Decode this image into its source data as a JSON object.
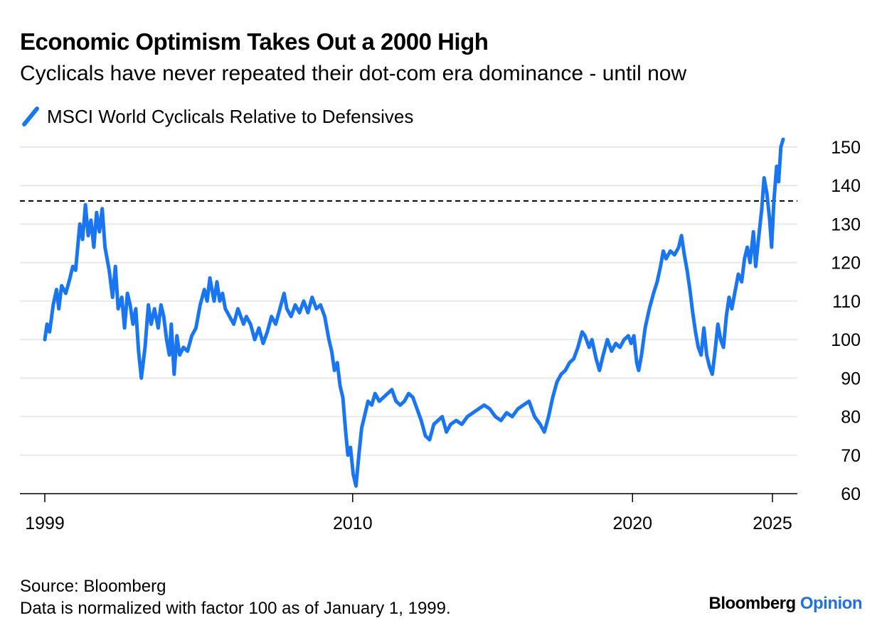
{
  "header": {
    "title": "Economic Optimism Takes Out a 2000 High",
    "subtitle": "Cyclicals have never repeated their dot-com era dominance - until now"
  },
  "footer": {
    "source": "Source: Bloomberg",
    "note": "Data is normalized with factor 100 as of January 1, 1999.",
    "brand_main": "Bloomberg",
    "brand_accent": "Opinion"
  },
  "colors": {
    "series": "#1a75f0",
    "brand_accent": "#1f6fe5",
    "grid": "#e8e8e8",
    "reference": "#000000"
  },
  "chart_data": {
    "type": "line",
    "title": "Economic Optimism Takes Out a 2000 High",
    "subtitle": "Cyclicals have never repeated their dot-com era dominance - until now",
    "xlabel": "",
    "ylabel": "",
    "xlim": [
      1999.0,
      2026.0
    ],
    "ylim": [
      60,
      152
    ],
    "x_ticks": [
      1999,
      2010,
      2020,
      2025
    ],
    "x_tick_labels": [
      "1999",
      "2010",
      "2020",
      "2025"
    ],
    "y_ticks": [
      60,
      70,
      80,
      90,
      100,
      110,
      120,
      130,
      140,
      150
    ],
    "y_tick_labels": [
      "60",
      "70",
      "80",
      "90",
      "100",
      "110",
      "120",
      "130",
      "140",
      "150"
    ],
    "y_axis_side": "right",
    "grid": true,
    "legend_placement": "top-left",
    "reference_line": {
      "y": 136,
      "style": "dashed"
    },
    "series": [
      {
        "name": "MSCI World Cyclicals Relative to Defensives",
        "points": [
          [
            1999.0,
            100
          ],
          [
            1999.08,
            104
          ],
          [
            1999.17,
            102
          ],
          [
            1999.3,
            109
          ],
          [
            1999.42,
            113
          ],
          [
            1999.5,
            108
          ],
          [
            1999.6,
            114
          ],
          [
            1999.75,
            112
          ],
          [
            1999.9,
            116
          ],
          [
            2000.0,
            119
          ],
          [
            2000.1,
            118
          ],
          [
            2000.25,
            130
          ],
          [
            2000.35,
            126
          ],
          [
            2000.45,
            135
          ],
          [
            2000.55,
            127
          ],
          [
            2000.65,
            131
          ],
          [
            2000.75,
            124
          ],
          [
            2000.85,
            133
          ],
          [
            2000.95,
            128
          ],
          [
            2001.05,
            134
          ],
          [
            2001.15,
            124
          ],
          [
            2001.3,
            118
          ],
          [
            2001.42,
            111
          ],
          [
            2001.52,
            119
          ],
          [
            2001.62,
            108
          ],
          [
            2001.75,
            111
          ],
          [
            2001.85,
            103
          ],
          [
            2001.95,
            112
          ],
          [
            2002.05,
            109
          ],
          [
            2002.15,
            104
          ],
          [
            2002.25,
            108
          ],
          [
            2002.35,
            97
          ],
          [
            2002.45,
            90
          ],
          [
            2002.58,
            98
          ],
          [
            2002.7,
            109
          ],
          [
            2002.8,
            104
          ],
          [
            2002.92,
            108
          ],
          [
            2003.05,
            103
          ],
          [
            2003.15,
            109
          ],
          [
            2003.25,
            106
          ],
          [
            2003.35,
            100
          ],
          [
            2003.45,
            96
          ],
          [
            2003.52,
            104
          ],
          [
            2003.62,
            91
          ],
          [
            2003.72,
            101
          ],
          [
            2003.82,
            96
          ],
          [
            2003.95,
            98
          ],
          [
            2004.1,
            97
          ],
          [
            2004.25,
            101
          ],
          [
            2004.4,
            103
          ],
          [
            2004.55,
            109
          ],
          [
            2004.7,
            113
          ],
          [
            2004.8,
            110
          ],
          [
            2004.9,
            116
          ],
          [
            2005.05,
            110
          ],
          [
            2005.15,
            115
          ],
          [
            2005.25,
            110
          ],
          [
            2005.35,
            112
          ],
          [
            2005.45,
            108
          ],
          [
            2005.6,
            106
          ],
          [
            2005.75,
            104
          ],
          [
            2005.9,
            108
          ],
          [
            2006.1,
            104
          ],
          [
            2006.2,
            106
          ],
          [
            2006.35,
            104
          ],
          [
            2006.5,
            100
          ],
          [
            2006.65,
            103
          ],
          [
            2006.8,
            99
          ],
          [
            2006.95,
            102
          ],
          [
            2007.1,
            106
          ],
          [
            2007.25,
            104
          ],
          [
            2007.4,
            108
          ],
          [
            2007.55,
            112
          ],
          [
            2007.65,
            108
          ],
          [
            2007.8,
            106
          ],
          [
            2007.95,
            109
          ],
          [
            2008.1,
            107
          ],
          [
            2008.25,
            110
          ],
          [
            2008.4,
            107
          ],
          [
            2008.55,
            111
          ],
          [
            2008.7,
            108
          ],
          [
            2008.85,
            109
          ],
          [
            2009.0,
            106
          ],
          [
            2009.15,
            100
          ],
          [
            2009.25,
            97
          ],
          [
            2009.35,
            92
          ],
          [
            2009.45,
            94
          ],
          [
            2009.55,
            88
          ],
          [
            2009.65,
            85
          ],
          [
            2009.75,
            76
          ],
          [
            2009.83,
            70
          ],
          [
            2009.92,
            72
          ],
          [
            2010.02,
            65
          ],
          [
            2010.12,
            62
          ],
          [
            2010.22,
            70
          ],
          [
            2010.32,
            77
          ],
          [
            2010.42,
            80
          ],
          [
            2010.55,
            84
          ],
          [
            2010.68,
            83
          ],
          [
            2010.8,
            86
          ],
          [
            2010.95,
            84
          ],
          [
            2011.1,
            85
          ],
          [
            2011.25,
            86
          ],
          [
            2011.4,
            87
          ],
          [
            2011.55,
            84
          ],
          [
            2011.7,
            83
          ],
          [
            2011.85,
            84
          ],
          [
            2012.0,
            86
          ],
          [
            2012.15,
            85
          ],
          [
            2012.3,
            82
          ],
          [
            2012.45,
            79
          ],
          [
            2012.6,
            75
          ],
          [
            2012.75,
            74
          ],
          [
            2012.9,
            78
          ],
          [
            2013.05,
            79
          ],
          [
            2013.2,
            80
          ],
          [
            2013.35,
            76
          ],
          [
            2013.5,
            78
          ],
          [
            2013.7,
            79
          ],
          [
            2013.9,
            78
          ],
          [
            2014.1,
            80
          ],
          [
            2014.3,
            81
          ],
          [
            2014.5,
            82
          ],
          [
            2014.7,
            83
          ],
          [
            2014.9,
            82
          ],
          [
            2015.1,
            80
          ],
          [
            2015.3,
            79
          ],
          [
            2015.5,
            81
          ],
          [
            2015.7,
            80
          ],
          [
            2015.9,
            82
          ],
          [
            2016.1,
            83
          ],
          [
            2016.3,
            84
          ],
          [
            2016.5,
            80
          ],
          [
            2016.7,
            78
          ],
          [
            2016.85,
            76
          ],
          [
            2017.0,
            80
          ],
          [
            2017.15,
            85
          ],
          [
            2017.3,
            89
          ],
          [
            2017.45,
            91
          ],
          [
            2017.6,
            92
          ],
          [
            2017.75,
            94
          ],
          [
            2017.9,
            95
          ],
          [
            2018.05,
            98
          ],
          [
            2018.2,
            102
          ],
          [
            2018.3,
            101
          ],
          [
            2018.45,
            98
          ],
          [
            2018.55,
            100
          ],
          [
            2018.7,
            95
          ],
          [
            2018.82,
            92
          ],
          [
            2018.95,
            96
          ],
          [
            2019.1,
            100
          ],
          [
            2019.25,
            97
          ],
          [
            2019.4,
            99
          ],
          [
            2019.55,
            98
          ],
          [
            2019.7,
            100
          ],
          [
            2019.85,
            101
          ],
          [
            2019.95,
            99
          ],
          [
            2020.05,
            101
          ],
          [
            2020.15,
            94
          ],
          [
            2020.22,
            92
          ],
          [
            2020.32,
            96
          ],
          [
            2020.45,
            103
          ],
          [
            2020.6,
            108
          ],
          [
            2020.75,
            112
          ],
          [
            2020.88,
            115
          ],
          [
            2021.0,
            119
          ],
          [
            2021.1,
            123
          ],
          [
            2021.2,
            121
          ],
          [
            2021.35,
            123
          ],
          [
            2021.5,
            122
          ],
          [
            2021.65,
            124
          ],
          [
            2021.75,
            127
          ],
          [
            2021.85,
            122
          ],
          [
            2021.95,
            118
          ],
          [
            2022.05,
            113
          ],
          [
            2022.15,
            107
          ],
          [
            2022.25,
            102
          ],
          [
            2022.35,
            98
          ],
          [
            2022.45,
            96
          ],
          [
            2022.55,
            103
          ],
          [
            2022.65,
            96
          ],
          [
            2022.75,
            93
          ],
          [
            2022.85,
            91
          ],
          [
            2022.95,
            97
          ],
          [
            2023.05,
            104
          ],
          [
            2023.15,
            100
          ],
          [
            2023.25,
            98
          ],
          [
            2023.35,
            106
          ],
          [
            2023.45,
            111
          ],
          [
            2023.55,
            108
          ],
          [
            2023.65,
            112
          ],
          [
            2023.78,
            117
          ],
          [
            2023.9,
            115
          ],
          [
            2024.0,
            121
          ],
          [
            2024.1,
            124
          ],
          [
            2024.2,
            120
          ],
          [
            2024.32,
            128
          ],
          [
            2024.4,
            119
          ],
          [
            2024.5,
            126
          ],
          [
            2024.62,
            134
          ],
          [
            2024.7,
            142
          ],
          [
            2024.8,
            138
          ],
          [
            2024.9,
            131
          ],
          [
            2024.97,
            124
          ],
          [
            2025.05,
            136
          ],
          [
            2025.15,
            145
          ],
          [
            2025.22,
            141
          ],
          [
            2025.3,
            150
          ],
          [
            2025.38,
            152
          ]
        ]
      }
    ]
  }
}
